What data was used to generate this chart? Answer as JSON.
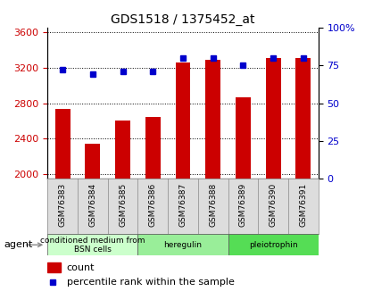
{
  "title": "GDS1518 / 1375452_at",
  "categories": [
    "GSM76383",
    "GSM76384",
    "GSM76385",
    "GSM76386",
    "GSM76387",
    "GSM76388",
    "GSM76389",
    "GSM76390",
    "GSM76391"
  ],
  "counts": [
    2740,
    2340,
    2600,
    2640,
    3260,
    3290,
    2870,
    3310,
    3310
  ],
  "percentiles": [
    72,
    69,
    71,
    71,
    80,
    80,
    75,
    80,
    80
  ],
  "ylim_left": [
    1950,
    3650
  ],
  "ylim_right": [
    0,
    100
  ],
  "yticks_left": [
    2000,
    2400,
    2800,
    3200,
    3600
  ],
  "yticks_right": [
    0,
    25,
    50,
    75,
    100
  ],
  "bar_color": "#cc0000",
  "dot_color": "#0000cc",
  "grid_color": "#000000",
  "agent_groups": [
    {
      "label": "conditioned medium from\nBSN cells",
      "start": 0,
      "end": 3,
      "color": "#ccffcc"
    },
    {
      "label": "heregulin",
      "start": 3,
      "end": 6,
      "color": "#99ee99"
    },
    {
      "label": "pleiotrophin",
      "start": 6,
      "end": 9,
      "color": "#55dd55"
    }
  ],
  "legend_count_label": "count",
  "legend_pct_label": "percentile rank within the sample",
  "agent_label": "agent",
  "bg_color": "#ffffff",
  "plot_bg_color": "#ffffff",
  "tick_label_area_color": "#dddddd"
}
